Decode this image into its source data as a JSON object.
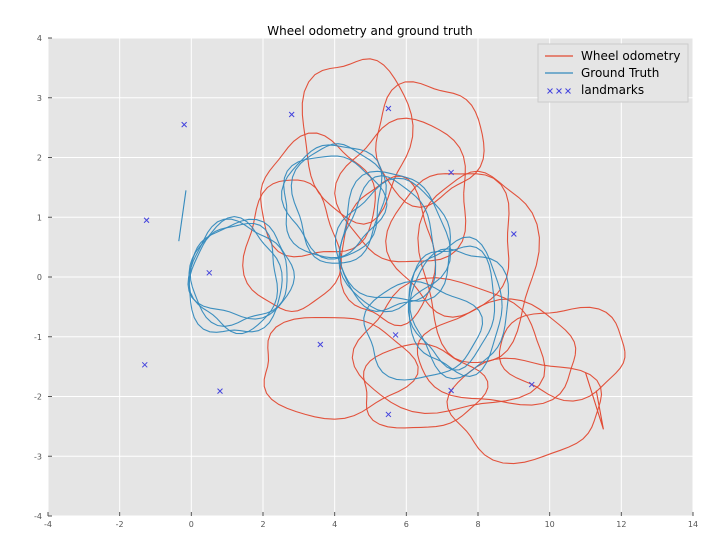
{
  "chart_data": {
    "type": "line",
    "title": "Wheel odometry and ground truth",
    "xlabel": "",
    "ylabel": "",
    "xlim": [
      -4,
      14
    ],
    "ylim": [
      -4,
      4
    ],
    "x_ticks": [
      -4,
      -2,
      0,
      2,
      4,
      6,
      8,
      10,
      12,
      14
    ],
    "y_ticks": [
      -4,
      -3,
      -2,
      -1,
      0,
      1,
      2,
      3,
      4
    ],
    "grid": true,
    "legend_position": "top-right",
    "colors": {
      "wheel_odometry": "#E24A33",
      "ground_truth": "#348ABD",
      "landmarks": "#4444DD",
      "plot_background": "#E5E5E5",
      "grid": "#FFFFFF"
    },
    "series": [
      {
        "name": "Wheel odometry",
        "kind": "line",
        "note_loops": "closed loop trajectories",
        "loops": [
          {
            "cx": 4.6,
            "cy": 2.35,
            "rx": 1.5,
            "ry": 1.35
          },
          {
            "cx": 6.6,
            "cy": 2.25,
            "rx": 1.5,
            "ry": 1.0
          },
          {
            "cx": 3.5,
            "cy": 1.3,
            "rx": 1.6,
            "ry": 1.0
          },
          {
            "cx": 5.5,
            "cy": 0.4,
            "rx": 1.3,
            "ry": 1.2
          },
          {
            "cx": 7.3,
            "cy": 0.6,
            "rx": 1.7,
            "ry": 1.2
          },
          {
            "cx": 8.0,
            "cy": 0.2,
            "rx": 1.6,
            "ry": 1.6
          },
          {
            "cx": 4.0,
            "cy": -1.5,
            "rx": 2.1,
            "ry": 0.85
          },
          {
            "cx": 7.2,
            "cy": -1.2,
            "rx": 2.6,
            "ry": 1.1
          },
          {
            "cx": 8.6,
            "cy": -1.3,
            "rx": 2.2,
            "ry": 0.85
          },
          {
            "cx": 10.4,
            "cy": -1.25,
            "rx": 1.75,
            "ry": 0.75
          },
          {
            "cx": 9.3,
            "cy": -2.2,
            "rx": 2.1,
            "ry": 0.85
          },
          {
            "cx": 6.4,
            "cy": -1.85,
            "rx": 1.7,
            "ry": 0.7
          },
          {
            "cx": 2.8,
            "cy": 0.5,
            "rx": 1.3,
            "ry": 1.1
          },
          {
            "cx": 6.0,
            "cy": 1.4,
            "rx": 1.8,
            "ry": 1.2
          }
        ]
      },
      {
        "name": "Ground Truth",
        "kind": "line",
        "loops": [
          {
            "cx": 1.3,
            "cy": 0.05,
            "rx": 1.35,
            "ry": 0.85
          },
          {
            "cx": 1.2,
            "cy": -0.05,
            "rx": 1.3,
            "ry": 0.95
          },
          {
            "cx": 1.4,
            "cy": 0.1,
            "rx": 1.45,
            "ry": 0.8
          },
          {
            "cx": 1.25,
            "cy": 0.0,
            "rx": 1.2,
            "ry": 0.9
          },
          {
            "cx": 4.0,
            "cy": 1.3,
            "rx": 1.35,
            "ry": 0.95
          },
          {
            "cx": 4.1,
            "cy": 1.25,
            "rx": 1.25,
            "ry": 1.0
          },
          {
            "cx": 3.9,
            "cy": 1.2,
            "rx": 1.4,
            "ry": 0.85
          },
          {
            "cx": 5.6,
            "cy": 0.6,
            "rx": 1.5,
            "ry": 1.15
          },
          {
            "cx": 5.5,
            "cy": 0.5,
            "rx": 1.3,
            "ry": 1.1
          },
          {
            "cx": 5.7,
            "cy": 0.55,
            "rx": 1.6,
            "ry": 1.0
          },
          {
            "cx": 7.4,
            "cy": -0.5,
            "rx": 1.3,
            "ry": 1.1
          },
          {
            "cx": 7.3,
            "cy": -0.45,
            "rx": 1.2,
            "ry": 1.0
          },
          {
            "cx": 7.5,
            "cy": -0.55,
            "rx": 1.35,
            "ry": 1.05
          },
          {
            "cx": 6.4,
            "cy": -0.9,
            "rx": 1.6,
            "ry": 0.8
          }
        ],
        "start_segment": [
          [
            -0.15,
            1.45
          ],
          [
            -0.35,
            0.6
          ]
        ]
      },
      {
        "name": "landmarks",
        "kind": "scatter",
        "marker": "x",
        "points": [
          [
            -0.2,
            2.55
          ],
          [
            2.8,
            2.72
          ],
          [
            5.5,
            2.82
          ],
          [
            -1.25,
            0.95
          ],
          [
            7.25,
            1.75
          ],
          [
            9.0,
            0.72
          ],
          [
            0.5,
            0.07
          ],
          [
            3.6,
            -1.13
          ],
          [
            5.7,
            -0.97
          ],
          [
            -1.3,
            -1.47
          ],
          [
            0.8,
            -1.91
          ],
          [
            7.25,
            -1.9
          ],
          [
            5.5,
            -2.3
          ],
          [
            9.5,
            -1.8
          ]
        ]
      }
    ]
  }
}
